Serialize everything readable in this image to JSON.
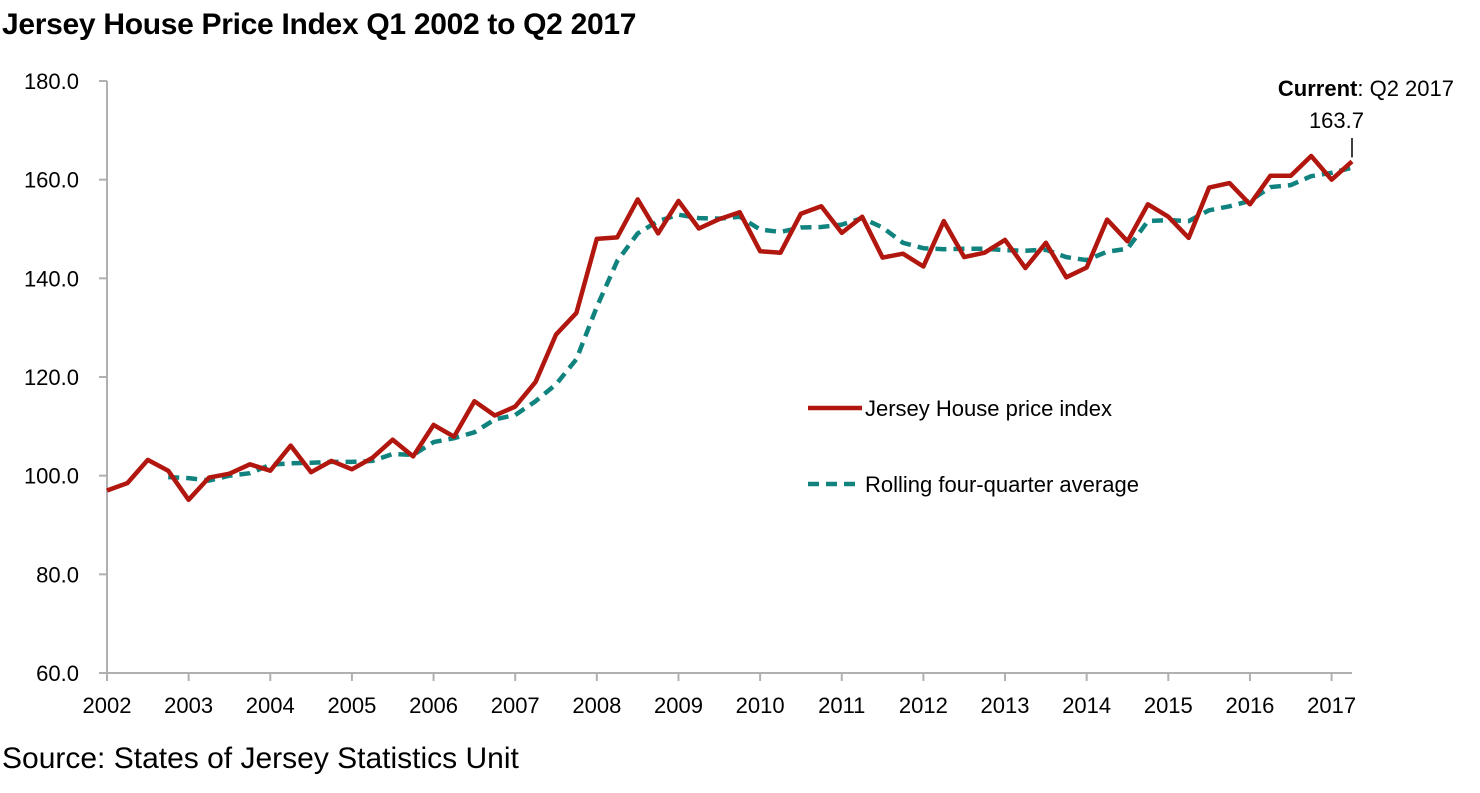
{
  "colors": {
    "index_line": "#b2170f",
    "average_line": "#10837f",
    "axis": "#b0b0b0"
  },
  "chart_data": {
    "type": "line",
    "title": "Jersey House Price Index Q1 2002 to Q2 2017",
    "source": "Source: States of Jersey Statistics Unit",
    "xlabel": "",
    "ylabel": "",
    "ylim": [
      60,
      180
    ],
    "yticks": [
      "60.0",
      "80.0",
      "100.0",
      "120.0",
      "140.0",
      "160.0",
      "180.0"
    ],
    "xticks": [
      "2002",
      "2003",
      "2004",
      "2005",
      "2006",
      "2007",
      "2008",
      "2009",
      "2010",
      "2011",
      "2012",
      "2013",
      "2014",
      "2015",
      "2016",
      "2017"
    ],
    "grid": false,
    "legend_position": "center-right",
    "x": [
      "Q1 2002",
      "Q2 2002",
      "Q3 2002",
      "Q4 2002",
      "Q1 2003",
      "Q2 2003",
      "Q3 2003",
      "Q4 2003",
      "Q1 2004",
      "Q2 2004",
      "Q3 2004",
      "Q4 2004",
      "Q1 2005",
      "Q2 2005",
      "Q3 2005",
      "Q4 2005",
      "Q1 2006",
      "Q2 2006",
      "Q3 2006",
      "Q4 2006",
      "Q1 2007",
      "Q2 2007",
      "Q3 2007",
      "Q4 2007",
      "Q1 2008",
      "Q2 2008",
      "Q3 2008",
      "Q4 2008",
      "Q1 2009",
      "Q2 2009",
      "Q3 2009",
      "Q4 2009",
      "Q1 2010",
      "Q2 2010",
      "Q3 2010",
      "Q4 2010",
      "Q1 2011",
      "Q2 2011",
      "Q3 2011",
      "Q4 2011",
      "Q1 2012",
      "Q2 2012",
      "Q3 2012",
      "Q4 2012",
      "Q1 2013",
      "Q2 2013",
      "Q3 2013",
      "Q4 2013",
      "Q1 2014",
      "Q2 2014",
      "Q3 2014",
      "Q4 2014",
      "Q1 2015",
      "Q2 2015",
      "Q3 2015",
      "Q4 2015",
      "Q1 2016",
      "Q2 2016",
      "Q3 2016",
      "Q4 2016",
      "Q1 2017",
      "Q2 2017"
    ],
    "series": [
      {
        "name": "Jersey House price index",
        "style": "solid",
        "values": [
          97.0,
          98.5,
          103.2,
          101.0,
          95.1,
          99.6,
          100.4,
          102.3,
          101.0,
          106.1,
          100.7,
          103.0,
          101.3,
          103.6,
          107.3,
          103.9,
          110.3,
          107.9,
          115.1,
          112.2,
          114.0,
          119.0,
          128.6,
          133.0,
          148.0,
          148.3,
          156.0,
          149.1,
          155.7,
          150.1,
          152.0,
          153.4,
          145.5,
          145.2,
          153.1,
          154.6,
          149.2,
          152.5,
          144.2,
          145.0,
          142.4,
          151.6,
          144.3,
          145.2,
          147.8,
          142.1,
          147.2,
          140.2,
          142.2,
          151.9,
          147.5,
          155.0,
          152.5,
          148.2,
          158.4,
          159.3,
          155.0,
          160.8,
          160.8,
          164.8,
          160.0,
          163.7
        ]
      },
      {
        "name": "Rolling four-quarter average",
        "style": "dashed",
        "values": [
          null,
          null,
          null,
          99.7,
          99.5,
          99.0,
          100.0,
          100.5,
          102.2,
          102.5,
          102.6,
          102.8,
          102.8,
          103.0,
          104.4,
          104.2,
          106.8,
          107.6,
          108.8,
          111.4,
          112.3,
          115.1,
          118.5,
          123.6,
          134.2,
          143.5,
          149.1,
          151.6,
          152.9,
          152.2,
          152.1,
          152.5,
          149.9,
          149.4,
          150.3,
          150.4,
          150.9,
          152.2,
          150.3,
          147.2,
          146.1,
          145.9,
          146.0,
          146.0,
          145.7,
          145.6,
          145.8,
          144.3,
          143.7,
          145.4,
          146.0,
          151.6,
          151.8,
          151.6,
          153.8,
          154.6,
          155.7,
          158.5,
          158.9,
          160.7,
          161.4,
          162.4
        ]
      }
    ],
    "annotations": [
      {
        "bold": "Current",
        "text": ": Q2 2017",
        "value": "163.7",
        "target": "Q2 2017"
      }
    ]
  }
}
